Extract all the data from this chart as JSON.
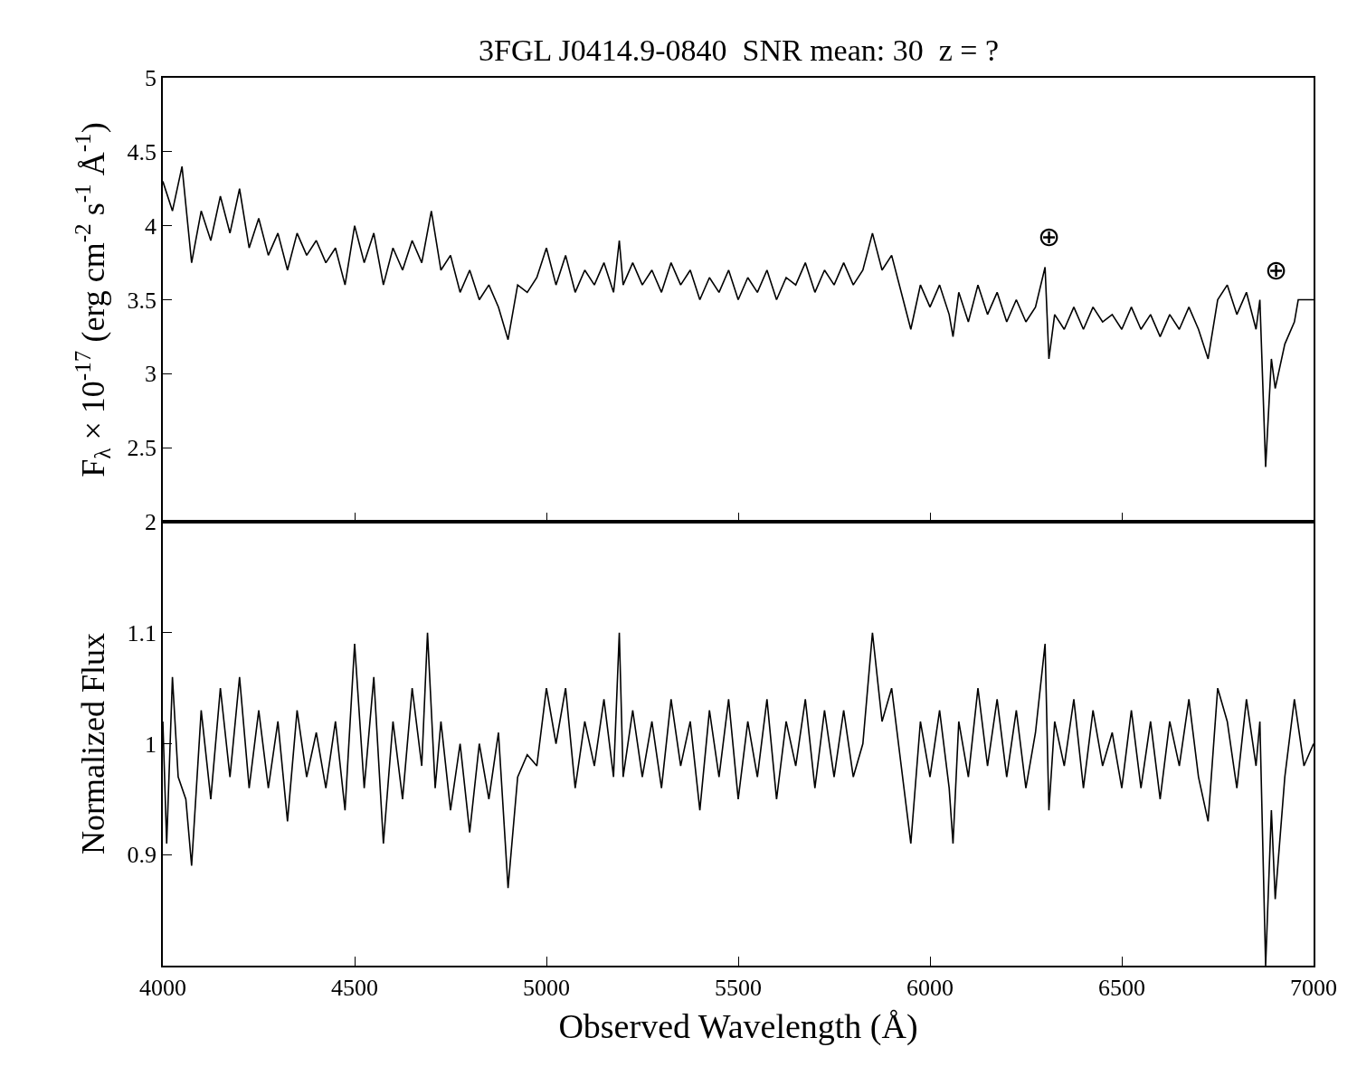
{
  "chart_data": [
    {
      "type": "line",
      "title": "3FGL J0414.9-0840  SNR mean: 30  z = ?",
      "ylabel": "F$_{λ}$ × 10$^{-17}$ (erg cm$^{-2}$ s$^{-1}$ Å$^{-1}$)",
      "x": [
        4000,
        4025,
        4050,
        4075,
        4100,
        4125,
        4150,
        4175,
        4200,
        4225,
        4250,
        4275,
        4300,
        4325,
        4350,
        4375,
        4400,
        4425,
        4450,
        4475,
        4500,
        4525,
        4550,
        4575,
        4600,
        4625,
        4650,
        4675,
        4700,
        4725,
        4750,
        4775,
        4800,
        4825,
        4850,
        4875,
        4900,
        4925,
        4950,
        4975,
        5000,
        5025,
        5050,
        5075,
        5100,
        5125,
        5150,
        5175,
        5190,
        5200,
        5225,
        5250,
        5275,
        5300,
        5325,
        5350,
        5375,
        5400,
        5425,
        5450,
        5475,
        5500,
        5525,
        5550,
        5575,
        5600,
        5625,
        5650,
        5675,
        5700,
        5725,
        5750,
        5775,
        5800,
        5825,
        5850,
        5875,
        5900,
        5925,
        5950,
        5975,
        6000,
        6025,
        6050,
        6060,
        6075,
        6100,
        6125,
        6150,
        6175,
        6200,
        6225,
        6250,
        6275,
        6300,
        6310,
        6325,
        6350,
        6375,
        6400,
        6425,
        6450,
        6475,
        6500,
        6525,
        6550,
        6575,
        6600,
        6625,
        6650,
        6675,
        6700,
        6725,
        6750,
        6775,
        6800,
        6825,
        6850,
        6860,
        6875,
        6890,
        6900,
        6925,
        6950,
        6960,
        7000
      ],
      "series": [
        {
          "color": "#000000",
          "values": [
            4.3,
            4.1,
            4.4,
            3.75,
            4.1,
            3.9,
            4.2,
            3.95,
            4.25,
            3.85,
            4.05,
            3.8,
            3.95,
            3.7,
            3.95,
            3.8,
            3.9,
            3.75,
            3.85,
            3.6,
            4.0,
            3.75,
            3.95,
            3.6,
            3.85,
            3.7,
            3.9,
            3.75,
            4.1,
            3.7,
            3.8,
            3.55,
            3.7,
            3.5,
            3.6,
            3.45,
            3.23,
            3.6,
            3.55,
            3.65,
            3.85,
            3.6,
            3.8,
            3.55,
            3.7,
            3.6,
            3.75,
            3.55,
            3.9,
            3.6,
            3.75,
            3.6,
            3.7,
            3.55,
            3.75,
            3.6,
            3.7,
            3.5,
            3.65,
            3.55,
            3.7,
            3.5,
            3.65,
            3.55,
            3.7,
            3.5,
            3.65,
            3.6,
            3.75,
            3.55,
            3.7,
            3.6,
            3.75,
            3.6,
            3.7,
            3.95,
            3.7,
            3.8,
            3.55,
            3.3,
            3.6,
            3.45,
            3.6,
            3.4,
            3.25,
            3.55,
            3.35,
            3.6,
            3.4,
            3.55,
            3.35,
            3.5,
            3.35,
            3.45,
            3.72,
            3.1,
            3.4,
            3.3,
            3.45,
            3.3,
            3.45,
            3.35,
            3.4,
            3.3,
            3.45,
            3.3,
            3.4,
            3.25,
            3.4,
            3.3,
            3.45,
            3.3,
            3.1,
            3.5,
            3.6,
            3.4,
            3.55,
            3.3,
            3.5,
            2.37,
            3.1,
            2.9,
            3.2,
            3.35,
            3.5,
            3.5
          ]
        }
      ],
      "xlim": [
        4000,
        7000
      ],
      "xticks": [
        4000,
        4500,
        5000,
        5500,
        6000,
        6500,
        7000
      ],
      "ylim": [
        2,
        5
      ],
      "yticks": [
        2,
        2.5,
        3,
        3.5,
        4,
        4.5,
        5
      ],
      "tick_labels": "y",
      "annotations": [
        {
          "text": "⊕",
          "x": 6300,
          "y": 3.72
        },
        {
          "text": "⊕",
          "x": 6860,
          "y": 3.5
        }
      ]
    },
    {
      "type": "line",
      "xlabel": "Observed Wavelength (Å)",
      "ylabel": "Normalized Flux",
      "x": [
        4000,
        4010,
        4025,
        4040,
        4060,
        4075,
        4100,
        4125,
        4150,
        4175,
        4200,
        4225,
        4250,
        4275,
        4300,
        4325,
        4350,
        4375,
        4400,
        4425,
        4450,
        4475,
        4500,
        4525,
        4550,
        4575,
        4600,
        4625,
        4650,
        4675,
        4690,
        4710,
        4725,
        4750,
        4775,
        4800,
        4825,
        4850,
        4875,
        4900,
        4925,
        4950,
        4975,
        5000,
        5025,
        5050,
        5075,
        5100,
        5125,
        5150,
        5175,
        5190,
        5200,
        5225,
        5250,
        5275,
        5300,
        5325,
        5350,
        5375,
        5400,
        5425,
        5450,
        5475,
        5500,
        5525,
        5550,
        5575,
        5600,
        5625,
        5650,
        5675,
        5700,
        5725,
        5750,
        5775,
        5800,
        5825,
        5850,
        5875,
        5900,
        5925,
        5950,
        5975,
        6000,
        6025,
        6050,
        6060,
        6075,
        6100,
        6125,
        6150,
        6175,
        6200,
        6225,
        6250,
        6275,
        6300,
        6310,
        6325,
        6350,
        6375,
        6400,
        6425,
        6450,
        6475,
        6500,
        6525,
        6550,
        6575,
        6600,
        6625,
        6650,
        6675,
        6700,
        6725,
        6750,
        6775,
        6800,
        6825,
        6850,
        6860,
        6875,
        6890,
        6900,
        6925,
        6950,
        6975,
        7000
      ],
      "series": [
        {
          "color": "#000000",
          "values": [
            1.02,
            0.91,
            1.06,
            0.97,
            0.95,
            0.89,
            1.03,
            0.95,
            1.05,
            0.97,
            1.06,
            0.96,
            1.03,
            0.96,
            1.02,
            0.93,
            1.03,
            0.97,
            1.01,
            0.96,
            1.02,
            0.94,
            1.09,
            0.96,
            1.06,
            0.91,
            1.02,
            0.95,
            1.05,
            0.98,
            1.1,
            0.96,
            1.02,
            0.94,
            1.0,
            0.92,
            1.0,
            0.95,
            1.01,
            0.87,
            0.97,
            0.99,
            0.98,
            1.05,
            1.0,
            1.05,
            0.96,
            1.02,
            0.98,
            1.04,
            0.97,
            1.1,
            0.97,
            1.03,
            0.97,
            1.02,
            0.96,
            1.04,
            0.98,
            1.02,
            0.94,
            1.03,
            0.97,
            1.04,
            0.95,
            1.02,
            0.97,
            1.04,
            0.95,
            1.02,
            0.98,
            1.04,
            0.96,
            1.03,
            0.97,
            1.03,
            0.97,
            1.0,
            1.1,
            1.02,
            1.05,
            0.98,
            0.91,
            1.02,
            0.97,
            1.03,
            0.96,
            0.91,
            1.02,
            0.97,
            1.05,
            0.98,
            1.04,
            0.97,
            1.03,
            0.96,
            1.01,
            1.09,
            0.94,
            1.02,
            0.98,
            1.04,
            0.96,
            1.03,
            0.98,
            1.01,
            0.96,
            1.03,
            0.96,
            1.02,
            0.95,
            1.02,
            0.98,
            1.04,
            0.97,
            0.93,
            1.05,
            1.02,
            0.96,
            1.04,
            0.98,
            1.02,
            0.8,
            0.94,
            0.86,
            0.97,
            1.04,
            0.98,
            1.0
          ]
        }
      ],
      "xlim": [
        4000,
        7000
      ],
      "xticks": [
        4000,
        4500,
        5000,
        5500,
        6000,
        6500,
        7000
      ],
      "ylim": [
        0.8,
        1.2
      ],
      "yticks": [
        0.9,
        1,
        1.1
      ]
    }
  ]
}
